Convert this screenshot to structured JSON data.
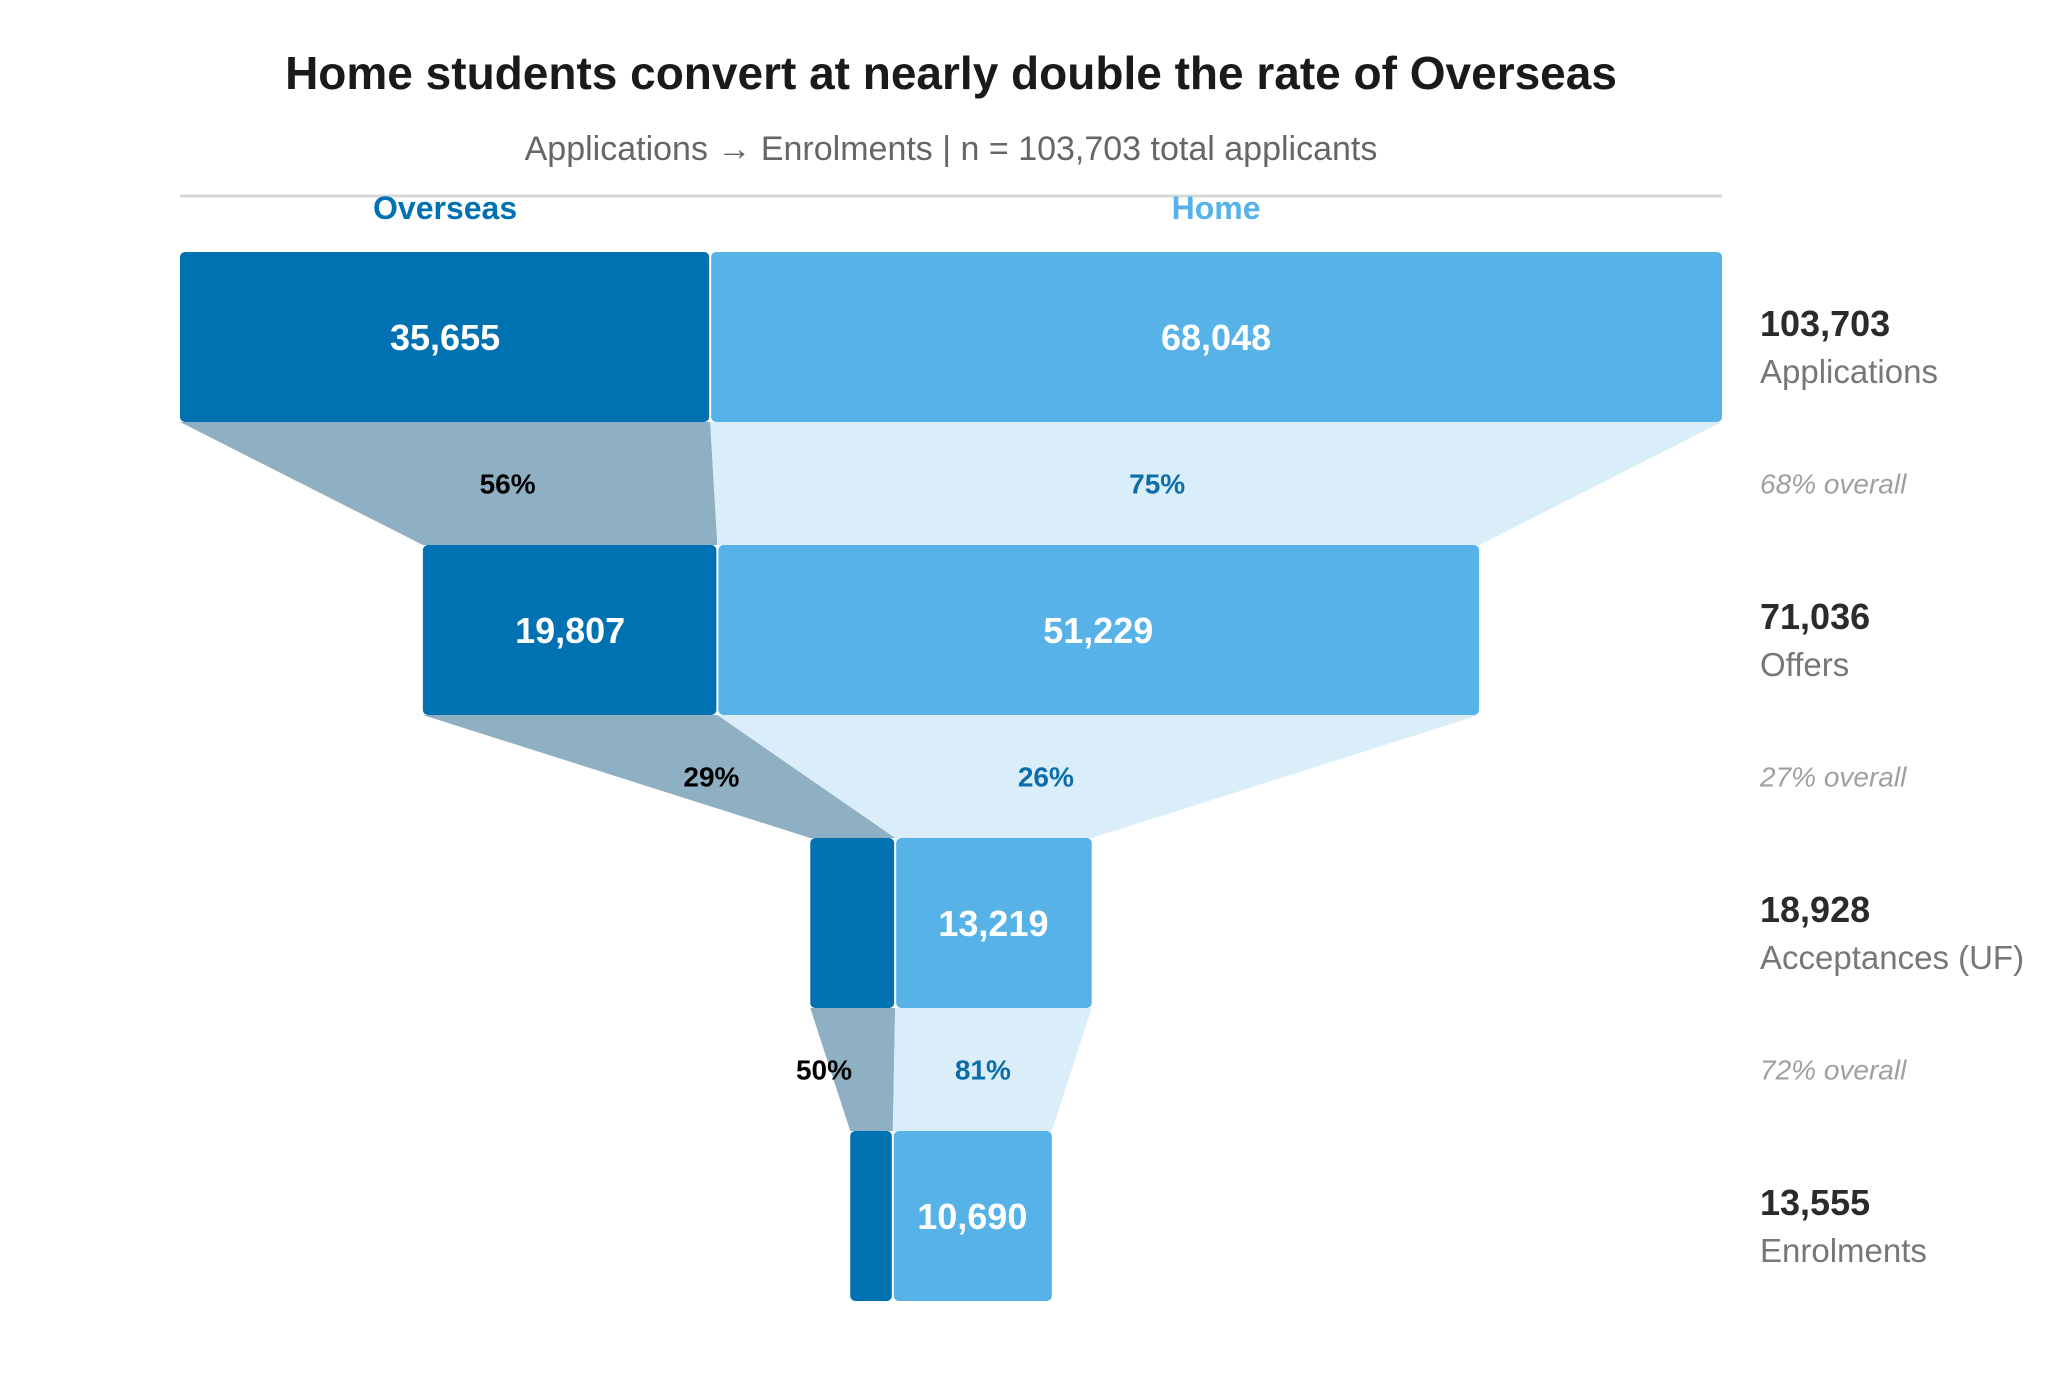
{
  "header": {
    "title": "Home students convert at nearly double the rate of Overseas",
    "subtitle": "Applications → Enrolments | n = 103,703 total applicants"
  },
  "colors": {
    "overseas": "#0071b1",
    "home": "#57b2e7",
    "overseas_connector": "#8fb0c3",
    "home_connector": "#d9eef9",
    "overseas_rate_text": "#000000",
    "home_rate_text": "#0d6dab",
    "divider": "#d8d8d8"
  },
  "chart_data": {
    "type": "funnel",
    "title": "Home students convert at nearly double the rate of Overseas",
    "subtitle": "Applications → Enrolments | n = 103,703 total applicants",
    "series": [
      {
        "name": "Overseas",
        "values": [
          35655,
          19807,
          null,
          null
        ],
        "labels": [
          "35,655",
          "19,807",
          "",
          ""
        ],
        "conversion_labels": [
          "56%",
          "29%",
          "50%"
        ]
      },
      {
        "name": "Home",
        "values": [
          68048,
          51229,
          13219,
          10690
        ],
        "labels": [
          "68,048",
          "51,229",
          "13,219",
          "10,690"
        ],
        "conversion_labels": [
          "75%",
          "26%",
          "81%"
        ]
      }
    ],
    "stages": [
      {
        "name": "Applications",
        "total": 103703,
        "total_label": "103,703"
      },
      {
        "name": "Offers",
        "total": 71036,
        "total_label": "71,036"
      },
      {
        "name": "Acceptances (UF)",
        "total": 18928,
        "total_label": "18,928"
      },
      {
        "name": "Enrolments",
        "total": 13555,
        "total_label": "13,555"
      }
    ],
    "overall_conversion_labels": [
      "68% overall",
      "27% overall",
      "72% overall"
    ]
  }
}
